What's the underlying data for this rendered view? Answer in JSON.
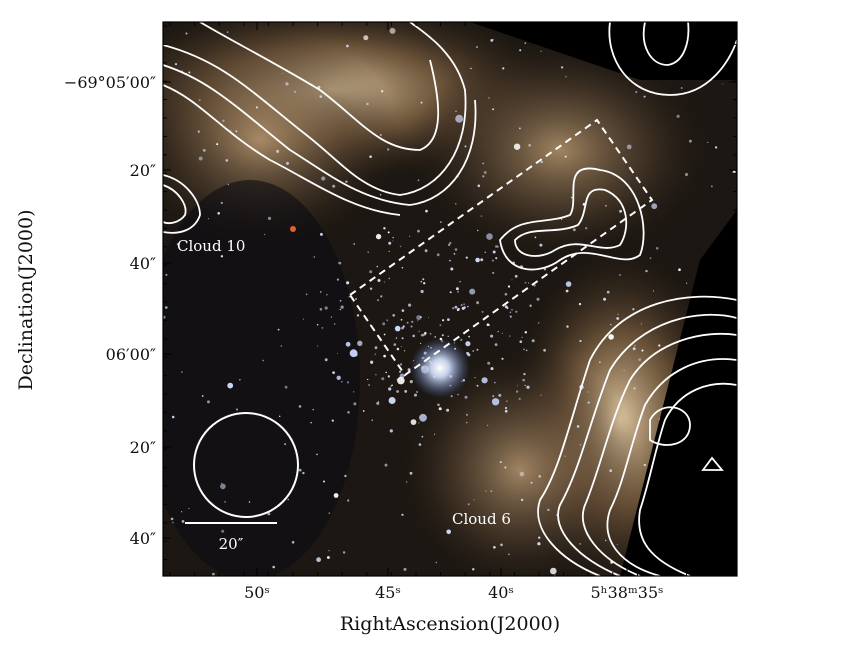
{
  "figure": {
    "x_axis_label": "RightAscension(J2000)",
    "y_axis_label": "Declination(J2000)",
    "x_tick_labels": [
      "50ˢ",
      "45ˢ",
      "40ˢ",
      "5ʰ38ᵐ35ˢ"
    ],
    "y_tick_labels": [
      "−69°05′00″",
      "20″",
      "40″",
      "06′00″",
      "20″",
      "40″"
    ],
    "annotations": {
      "cloud_10": "Cloud 10",
      "cloud_6": "Cloud 6",
      "scale_bar": "20″"
    }
  }
}
